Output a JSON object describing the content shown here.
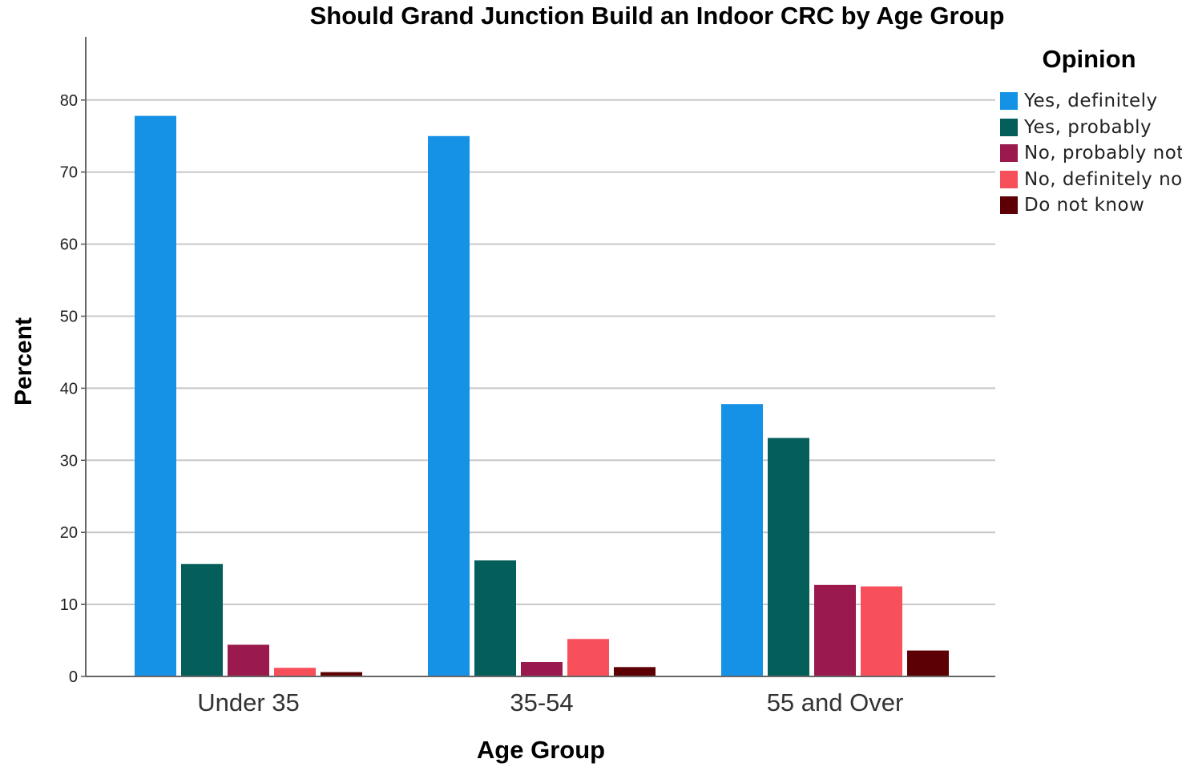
{
  "chart_data": {
    "type": "bar",
    "title": "Should Grand Junction Build an Indoor CRC by Age Group",
    "xlabel": "Age Group",
    "ylabel": "Percent",
    "ylim": [
      0,
      80
    ],
    "yticks": [
      "0",
      "10",
      "20",
      "30",
      "40",
      "50",
      "60",
      "70",
      "80"
    ],
    "grid": true,
    "legend_title": "Opinion",
    "legend_position": "right",
    "categories": [
      "Under 35",
      "35-54",
      "55 and Over"
    ],
    "series": [
      {
        "name": "Yes, definitely",
        "color": "#1591e6",
        "values": [
          77.8,
          75.0,
          37.8
        ]
      },
      {
        "name": "Yes, probably",
        "color": "#045e5a",
        "values": [
          15.6,
          16.1,
          33.1
        ]
      },
      {
        "name": "No, probably not",
        "color": "#9a1a4e",
        "values": [
          4.4,
          2.0,
          12.7
        ]
      },
      {
        "name": "No, definitely not",
        "color": "#f8505a",
        "values": [
          1.2,
          5.2,
          12.5
        ]
      },
      {
        "name": "Do not know",
        "color": "#5c0005",
        "values": [
          0.6,
          1.3,
          3.6
        ]
      }
    ]
  }
}
